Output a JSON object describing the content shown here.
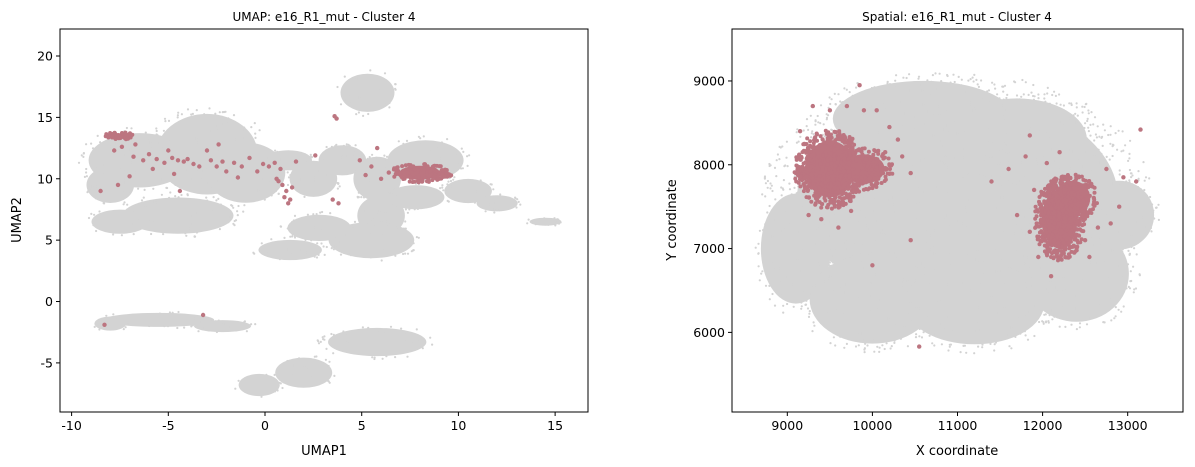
{
  "colors": {
    "background_cells": "#d3d3d3",
    "cluster_cells": "#bc7580",
    "axes": "#000000",
    "figure_bg": "#ffffff"
  },
  "chart_data": [
    {
      "type": "scatter",
      "title": "UMAP: e16_R1_mut - Cluster 4",
      "xlabel": "UMAP1",
      "ylabel": "UMAP2",
      "xlim": [
        -10.6,
        16.7
      ],
      "ylim": [
        -9.0,
        22.2
      ],
      "xticks": [
        -10,
        -5,
        0,
        5,
        10,
        15
      ],
      "yticks": [
        -5,
        0,
        5,
        10,
        15,
        20
      ],
      "grid": false,
      "legend": "none",
      "series": [
        {
          "role": "background",
          "blobs": [
            [
              -6.5,
              11.5,
              3.2,
              2.7
            ],
            [
              -3.0,
              12.0,
              3.2,
              4.0
            ],
            [
              -1.0,
              10.5,
              2.5,
              3.0
            ],
            [
              -4.5,
              7.0,
              3.5,
              1.8
            ],
            [
              -7.5,
              6.5,
              1.8,
              1.2
            ],
            [
              -8.0,
              9.5,
              1.5,
              1.8
            ],
            [
              1.2,
              11.5,
              1.5,
              1.0
            ],
            [
              2.5,
              10.0,
              1.5,
              1.8
            ],
            [
              5.3,
              17.0,
              1.7,
              1.9
            ],
            [
              4.0,
              11.5,
              1.5,
              1.5
            ],
            [
              5.8,
              10.0,
              1.5,
              2.2
            ],
            [
              6.0,
              7.0,
              1.5,
              2.0
            ],
            [
              8.3,
              11.5,
              2.4,
              2.0
            ],
            [
              7.8,
              8.5,
              1.8,
              1.2
            ],
            [
              10.5,
              9.0,
              1.5,
              1.2
            ],
            [
              12.0,
              8.0,
              1.3,
              0.8
            ],
            [
              14.5,
              6.5,
              1.0,
              0.4
            ],
            [
              5.5,
              5.0,
              2.7,
              1.8
            ],
            [
              2.8,
              6.0,
              2.0,
              1.3
            ],
            [
              1.3,
              4.2,
              2.0,
              1.0
            ],
            [
              -5.5,
              -1.5,
              3.5,
              0.7
            ],
            [
              -2.2,
              -2.0,
              1.8,
              0.6
            ],
            [
              -8.0,
              -1.8,
              1.0,
              0.7
            ],
            [
              5.8,
              -3.3,
              3.1,
              1.4
            ],
            [
              2.0,
              -5.8,
              1.8,
              1.5
            ],
            [
              -0.3,
              -6.8,
              1.3,
              1.1
            ]
          ]
        },
        {
          "role": "cluster",
          "dense_regions": [
            [
              8.0,
              10.5,
              1.5,
              0.8
            ],
            [
              9.0,
              10.4,
              0.8,
              0.35
            ],
            [
              -7.5,
              13.5,
              0.8,
              0.3
            ]
          ],
          "points": [
            [
              -6.8,
              11.8
            ],
            [
              -6.3,
              11.5
            ],
            [
              -6.0,
              12.0
            ],
            [
              -5.6,
              11.6
            ],
            [
              -5.2,
              11.3
            ],
            [
              -4.8,
              11.7
            ],
            [
              -4.5,
              11.5
            ],
            [
              -4.2,
              11.4
            ],
            [
              -4.0,
              11.6
            ],
            [
              -3.7,
              11.2
            ],
            [
              -3.4,
              11.0
            ],
            [
              -3.0,
              12.3
            ],
            [
              -2.8,
              11.5
            ],
            [
              -2.5,
              11.0
            ],
            [
              -2.2,
              11.4
            ],
            [
              -2.0,
              10.6
            ],
            [
              -1.6,
              11.3
            ],
            [
              -1.2,
              11.0
            ],
            [
              -0.8,
              11.7
            ],
            [
              -0.4,
              10.6
            ],
            [
              -0.1,
              11.2
            ],
            [
              0.2,
              11.0
            ],
            [
              0.5,
              11.3
            ],
            [
              0.8,
              10.8
            ],
            [
              0.6,
              10.0
            ],
            [
              0.9,
              9.5
            ],
            [
              1.1,
              9.0
            ],
            [
              1.0,
              8.5
            ],
            [
              1.3,
              8.3
            ],
            [
              0.7,
              9.8
            ],
            [
              1.2,
              8.0
            ],
            [
              1.4,
              9.3
            ],
            [
              1.6,
              11.4
            ],
            [
              2.6,
              11.9
            ],
            [
              3.5,
              8.3
            ],
            [
              3.8,
              8.0
            ],
            [
              3.6,
              15.1
            ],
            [
              3.7,
              14.9
            ],
            [
              5.8,
              12.5
            ],
            [
              5.5,
              11.0
            ],
            [
              6.0,
              10.0
            ],
            [
              5.2,
              10.3
            ],
            [
              6.4,
              10.5
            ],
            [
              4.9,
              11.5
            ],
            [
              -7.8,
              12.3
            ],
            [
              -7.4,
              12.6
            ],
            [
              -7.0,
              10.2
            ],
            [
              -7.6,
              9.5
            ],
            [
              -8.5,
              9.0
            ],
            [
              -6.7,
              12.8
            ],
            [
              -5.8,
              10.8
            ],
            [
              -4.7,
              10.4
            ],
            [
              -4.4,
              9.0
            ],
            [
              -2.4,
              12.8
            ],
            [
              -1.4,
              10.1
            ],
            [
              -5.0,
              12.3
            ],
            [
              -8.3,
              -1.9
            ],
            [
              -3.2,
              -1.1
            ]
          ]
        }
      ]
    },
    {
      "type": "scatter",
      "title": "Spatial: e16_R1_mut - Cluster 4",
      "xlabel": "X coordinate",
      "ylabel": "Y coordinate",
      "xlim": [
        8350,
        13650
      ],
      "ylim": [
        5050,
        9620
      ],
      "xticks": [
        9000,
        10000,
        11000,
        12000,
        13000
      ],
      "yticks": [
        6000,
        7000,
        8000,
        9000
      ],
      "grid": false,
      "legend": "none",
      "series": [
        {
          "role": "background",
          "blobs": [
            [
              11000,
              7600,
              2300,
              1500
            ],
            [
              10600,
              8550,
              1300,
              550
            ],
            [
              11700,
              8300,
              1000,
              600
            ],
            [
              9100,
              7000,
              500,
              800
            ],
            [
              10000,
              6400,
              900,
              650
            ],
            [
              11200,
              6350,
              1000,
              600
            ],
            [
              12400,
              6700,
              750,
              700
            ],
            [
              12900,
              7400,
              500,
              500
            ]
          ]
        },
        {
          "role": "cluster",
          "dense_regions": [
            [
              9500,
              7950,
              420,
              480
            ],
            [
              9900,
              7950,
              350,
              250
            ],
            [
              12200,
              7350,
              300,
              500
            ],
            [
              12350,
              7600,
              300,
              300
            ]
          ],
          "points": [
            [
              9150,
              8400
            ],
            [
              9300,
              8700
            ],
            [
              9500,
              8650
            ],
            [
              9700,
              8700
            ],
            [
              9850,
              8950
            ],
            [
              9900,
              8650
            ],
            [
              10050,
              8650
            ],
            [
              10200,
              8450
            ],
            [
              10150,
              8150
            ],
            [
              10350,
              8100
            ],
            [
              10450,
              7900
            ],
            [
              10300,
              8300
            ],
            [
              9250,
              7400
            ],
            [
              9400,
              7350
            ],
            [
              9600,
              7250
            ],
            [
              9750,
              7450
            ],
            [
              11400,
              7800
            ],
            [
              11600,
              7950
            ],
            [
              11800,
              8100
            ],
            [
              11700,
              7400
            ],
            [
              11850,
              7200
            ],
            [
              11950,
              6900
            ],
            [
              12100,
              6670
            ],
            [
              12400,
              6980
            ],
            [
              12550,
              6900
            ],
            [
              12800,
              7300
            ],
            [
              12900,
              7500
            ],
            [
              12750,
              7950
            ],
            [
              12950,
              7850
            ],
            [
              13100,
              7800
            ],
            [
              12200,
              8150
            ],
            [
              12050,
              8020
            ],
            [
              11900,
              7700
            ],
            [
              12650,
              7250
            ],
            [
              12500,
              7100
            ],
            [
              13150,
              8420
            ],
            [
              11850,
              8350
            ],
            [
              10450,
              7100
            ],
            [
              10000,
              6800
            ],
            [
              10550,
              5830
            ]
          ]
        }
      ]
    }
  ]
}
